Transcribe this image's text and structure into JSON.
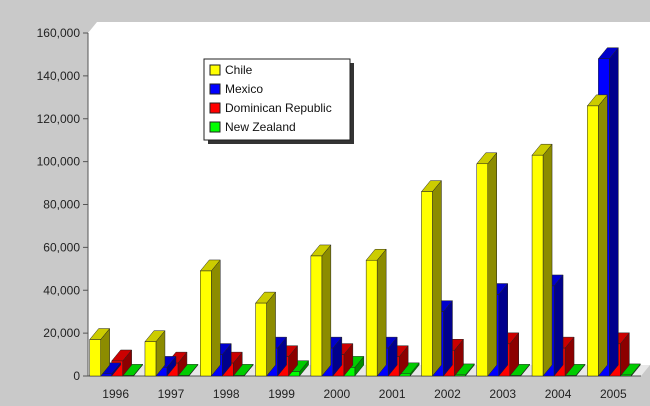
{
  "chart_data": {
    "type": "bar",
    "style": "3d-clustered",
    "categories": [
      "1996",
      "1997",
      "1998",
      "1999",
      "2000",
      "2001",
      "2002",
      "2003",
      "2004",
      "2005"
    ],
    "series": [
      {
        "name": "Chile",
        "color": "#ffff00",
        "values": [
          17000,
          16000,
          49000,
          34000,
          56000,
          54000,
          86000,
          99000,
          103000,
          126000
        ]
      },
      {
        "name": "Mexico",
        "color": "#0000ff",
        "values": [
          1000,
          4000,
          10000,
          13000,
          13000,
          13000,
          30000,
          38000,
          42000,
          148000
        ]
      },
      {
        "name": "Dominican Republic",
        "color": "#ff0000",
        "values": [
          7000,
          6000,
          6000,
          9000,
          10000,
          9000,
          12000,
          15000,
          13000,
          15000
        ]
      },
      {
        "name": "New Zealand",
        "color": "#00ff00",
        "values": [
          300,
          300,
          300,
          2000,
          4000,
          1000,
          500,
          300,
          300,
          500
        ]
      }
    ],
    "y_ticks": [
      "0",
      "20,000",
      "40,000",
      "60,000",
      "80,000",
      "100,000",
      "120,000",
      "140,000",
      "160,000"
    ],
    "ylim": [
      0,
      160000
    ],
    "legend_position": "top-left-inside",
    "grid": false,
    "plot_background": "#ffffff",
    "chart_background": "#c9c9c9"
  }
}
